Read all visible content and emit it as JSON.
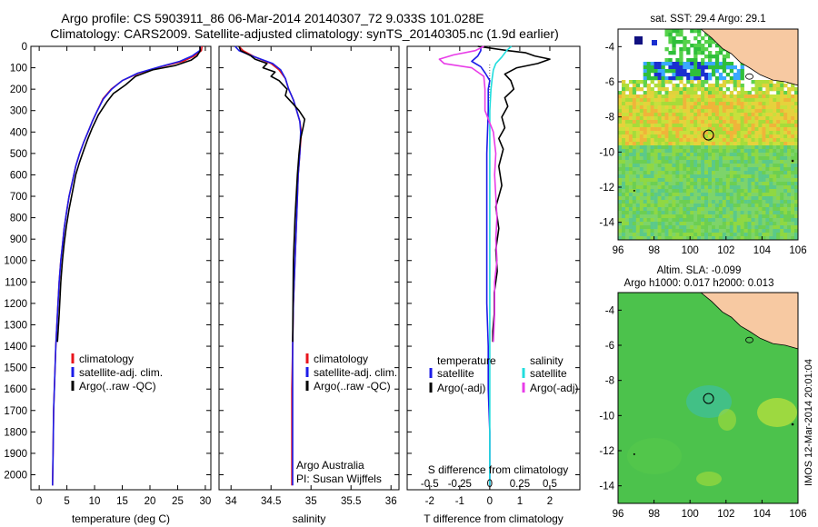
{
  "figure": {
    "title_line1": "Argo profile: CS 5903911_86 06-Mar-2014 20140307_72 9.033S 101.028E",
    "title_line2": "Climatology: CARS2009. Satellite-adjusted climatology: synTS_20140305.nc (1.9d earlier)",
    "side_text": "IMOS 12-Mar-2014 20:01:04"
  },
  "colors": {
    "climatology": "#e8141c",
    "satellite": "#1c1ce8",
    "argo": "#000000",
    "sat_salinity": "#22dddd",
    "argo_adj_salinity": "#e83ce8",
    "land": "#f7c9a2",
    "map_green": "#4cc24c"
  },
  "chart_data": [
    {
      "type": "line",
      "panel": "temperature",
      "xlabel": "temperature (deg C)",
      "ylabel": "",
      "xlim": [
        -1.5,
        31
      ],
      "ylim": [
        2070,
        0
      ],
      "x_ticks": [
        "0",
        "5",
        "10",
        "15",
        "20",
        "25",
        "30"
      ],
      "x_tick_values": [
        0,
        5,
        10,
        15,
        20,
        25,
        30
      ],
      "y_ticks": [
        "0",
        "100",
        "200",
        "300",
        "400",
        "500",
        "600",
        "700",
        "800",
        "900",
        "1000",
        "1100",
        "1200",
        "1300",
        "1400",
        "1500",
        "1600",
        "1700",
        "1800",
        "1900",
        "2000"
      ],
      "y_tick_values": [
        0,
        100,
        200,
        300,
        400,
        500,
        600,
        700,
        800,
        900,
        1000,
        1100,
        1200,
        1300,
        1400,
        1500,
        1600,
        1700,
        1800,
        1900,
        2000
      ],
      "legend": [
        "climatology",
        "satellite-adj. clim.",
        "Argo(..raw -QC)"
      ],
      "series": [
        {
          "name": "climatology",
          "color": "#e8141c",
          "x": [
            29.4,
            29.3,
            28.0,
            26.0,
            22.0,
            18.0,
            15.0,
            13.0,
            11.5,
            10.5,
            9.6,
            8.8,
            8.0,
            7.3,
            6.6,
            6.0,
            5.4,
            4.9,
            4.5,
            4.2,
            3.9,
            3.6,
            3.3,
            3.0,
            2.8,
            2.6,
            2.5,
            2.4
          ],
          "y": [
            0,
            20,
            45,
            70,
            95,
            125,
            160,
            200,
            245,
            300,
            350,
            400,
            450,
            500,
            560,
            630,
            700,
            780,
            850,
            930,
            1000,
            1100,
            1250,
            1400,
            1550,
            1700,
            1900,
            2050
          ]
        },
        {
          "name": "satellite-adj. clim.",
          "color": "#1c1ce8",
          "x": [
            29.1,
            29.0,
            27.6,
            25.4,
            21.8,
            17.8,
            15.0,
            13.1,
            11.6,
            10.5,
            9.6,
            8.8,
            8.0,
            7.3,
            6.6,
            6.0,
            5.4,
            4.9,
            4.5,
            4.2,
            3.9,
            3.6,
            3.3,
            3.0,
            2.8,
            2.6,
            2.5,
            2.4
          ],
          "y": [
            0,
            20,
            45,
            70,
            95,
            125,
            160,
            200,
            245,
            300,
            350,
            400,
            450,
            500,
            560,
            630,
            700,
            780,
            850,
            930,
            1000,
            1100,
            1250,
            1400,
            1550,
            1700,
            1900,
            2050
          ]
        },
        {
          "name": "Argo(..raw -QC)",
          "color": "#000000",
          "x": [
            29.0,
            29.1,
            28.5,
            27.4,
            24.5,
            20.5,
            17.4,
            15.6,
            13.4,
            12.2,
            10.7,
            9.6,
            8.8,
            8.1,
            7.3,
            6.6,
            6.0,
            5.4,
            4.9,
            4.5,
            4.2,
            3.9,
            3.6,
            3.3
          ],
          "y": [
            0,
            20,
            45,
            65,
            90,
            110,
            140,
            180,
            220,
            260,
            320,
            380,
            430,
            480,
            540,
            600,
            680,
            760,
            840,
            920,
            1000,
            1100,
            1250,
            1380
          ]
        }
      ]
    },
    {
      "type": "line",
      "panel": "salinity",
      "xlabel": "salinity",
      "xlim": [
        33.85,
        36.1
      ],
      "ylim": [
        2070,
        0
      ],
      "x_ticks": [
        "34",
        "34.5",
        "35",
        "35.5",
        "36"
      ],
      "x_tick_values": [
        34,
        34.5,
        35,
        35.5,
        36
      ],
      "legend": [
        "climatology",
        "satellite-adj. clim.",
        "Argo(..raw -QC)"
      ],
      "annotation_line1": "Argo Australia",
      "annotation_line2": "PI: Susan Wijffels",
      "series": [
        {
          "name": "climatology",
          "color": "#e8141c",
          "x": [
            34.1,
            34.15,
            34.3,
            34.5,
            34.6,
            34.68,
            34.72,
            34.78,
            34.82,
            34.86,
            34.88,
            34.86,
            34.84,
            34.82,
            34.8,
            34.78,
            34.77,
            34.76,
            34.76,
            34.76
          ],
          "y": [
            0,
            20,
            50,
            80,
            110,
            150,
            200,
            250,
            300,
            350,
            400,
            500,
            600,
            800,
            1000,
            1200,
            1400,
            1600,
            1800,
            2050
          ]
        },
        {
          "name": "satellite-adj. clim.",
          "color": "#1c1ce8",
          "x": [
            34.05,
            34.1,
            34.3,
            34.52,
            34.62,
            34.68,
            34.72,
            34.78,
            34.82,
            34.86,
            34.87,
            34.86,
            34.84,
            34.82,
            34.8,
            34.78,
            34.77,
            34.77,
            34.77,
            34.77
          ],
          "y": [
            0,
            20,
            50,
            80,
            110,
            150,
            200,
            250,
            300,
            350,
            400,
            500,
            600,
            800,
            1000,
            1200,
            1400,
            1600,
            1800,
            2050
          ]
        },
        {
          "name": "Argo(..raw -QC)",
          "color": "#000000",
          "x": [
            34.1,
            34.12,
            34.25,
            34.3,
            34.45,
            34.4,
            34.55,
            34.5,
            34.6,
            34.7,
            34.68,
            34.78,
            34.85,
            34.92,
            34.9,
            34.87,
            34.85,
            34.83,
            34.8,
            34.78,
            34.77
          ],
          "y": [
            0,
            20,
            45,
            60,
            80,
            100,
            120,
            140,
            160,
            200,
            230,
            270,
            300,
            340,
            380,
            430,
            500,
            600,
            800,
            1000,
            1380
          ]
        }
      ]
    },
    {
      "type": "line",
      "panel": "difference",
      "xlabel": "T difference from climatology",
      "xlabel_top": "S difference from climatology",
      "xlim": [
        -2.75,
        3.0
      ],
      "ylim": [
        2070,
        0
      ],
      "x_ticks": [
        "-2",
        "-1",
        "0",
        "1",
        "2"
      ],
      "x_tick_values": [
        -2,
        -1,
        0,
        1,
        2
      ],
      "x_ticks_top": [
        "-0.5",
        "-0.25",
        "0",
        "0.25",
        "0.5"
      ],
      "x_tick_values_top": [
        -0.5,
        -0.25,
        0,
        0.25,
        0.5
      ],
      "legend_temperature_header": "temperature",
      "legend_salinity_header": "salinity",
      "legend": [
        "satellite",
        "Argo(-adj)",
        "satellite",
        "Argo(-adj)"
      ],
      "series": [
        {
          "name": "satellite",
          "color": "#1c1ce8",
          "x": [
            -0.3,
            -0.3,
            -0.4,
            -0.6,
            -0.3,
            -0.15,
            0.0,
            -0.05,
            -0.05,
            -0.1,
            -0.1,
            -0.1,
            -0.1,
            -0.05,
            -0.05,
            0.0,
            0.0
          ],
          "y": [
            0,
            20,
            45,
            70,
            95,
            125,
            160,
            200,
            300,
            500,
            800,
            1000,
            1200,
            1400,
            1600,
            1800,
            2050
          ]
        },
        {
          "name": "Argo(-adj)",
          "color": "#000000",
          "x": [
            -0.4,
            0.6,
            1.2,
            1.5,
            2.0,
            1.6,
            0.9,
            0.5,
            0.7,
            0.8,
            0.5,
            0.6,
            0.4,
            0.5,
            0.3,
            0.45,
            0.3,
            0.4,
            0.2,
            0.3,
            0.2,
            0.25,
            0.15,
            0.15,
            0.1,
            0.1
          ],
          "y": [
            0,
            20,
            30,
            45,
            60,
            80,
            100,
            130,
            160,
            200,
            240,
            280,
            330,
            380,
            430,
            480,
            560,
            650,
            750,
            850,
            950,
            1050,
            1150,
            1250,
            1330,
            1380
          ]
        },
        {
          "name": "satellite",
          "color": "#22dddd",
          "x": [
            0.18,
            0.14,
            0.1,
            0.05,
            0.03,
            0.02,
            0.01,
            0.0,
            0.0,
            0.0,
            0.0,
            0.0,
            0.0,
            0.0,
            0.0,
            0.0
          ],
          "y": [
            0,
            20,
            50,
            80,
            110,
            150,
            200,
            300,
            500,
            800,
            1000,
            1200,
            1400,
            1600,
            1800,
            2050
          ]
        },
        {
          "name": "Argo(-adj)",
          "color": "#e83ce8",
          "x": [
            -0.05,
            -0.12,
            -0.3,
            -0.42,
            -0.38,
            -0.15,
            -0.05,
            -0.04,
            -0.04,
            0.03,
            0.05,
            0.04,
            0.05,
            0.06,
            0.05,
            0.06,
            0.04,
            0.04,
            0.03
          ],
          "y": [
            0,
            20,
            40,
            60,
            80,
            100,
            140,
            200,
            300,
            400,
            500,
            600,
            700,
            800,
            900,
            1000,
            1100,
            1250,
            1380
          ]
        }
      ]
    },
    {
      "type": "heatmap",
      "panel": "sst_map",
      "title": "sat. SST: 29.4  Argo: 29.1",
      "xlim": [
        96,
        106
      ],
      "ylim": [
        -15,
        -3
      ],
      "x_ticks": [
        "96",
        "98",
        "100",
        "102",
        "104",
        "106"
      ],
      "x_tick_values": [
        96,
        98,
        100,
        102,
        104,
        106
      ],
      "y_ticks": [
        "-4",
        "-6",
        "-8",
        "-10",
        "-12",
        "-14"
      ],
      "y_tick_values": [
        -4,
        -6,
        -8,
        -10,
        -12,
        -14
      ],
      "argo_position": [
        101.028,
        -9.033
      ]
    },
    {
      "type": "heatmap",
      "panel": "sla_map",
      "title_line1": "Altim. SLA: -0.099",
      "title_line2": "Argo h1000: 0.017  h2000: 0.013",
      "xlim": [
        96,
        106
      ],
      "ylim": [
        -15,
        -3
      ],
      "x_ticks": [
        "96",
        "98",
        "100",
        "102",
        "104",
        "106"
      ],
      "x_tick_values": [
        96,
        98,
        100,
        102,
        104,
        106
      ],
      "y_ticks": [
        "-4",
        "-6",
        "-8",
        "-10",
        "-12",
        "-14"
      ],
      "y_tick_values": [
        -4,
        -6,
        -8,
        -10,
        -12,
        -14
      ],
      "argo_position": [
        101.028,
        -9.033
      ]
    }
  ]
}
